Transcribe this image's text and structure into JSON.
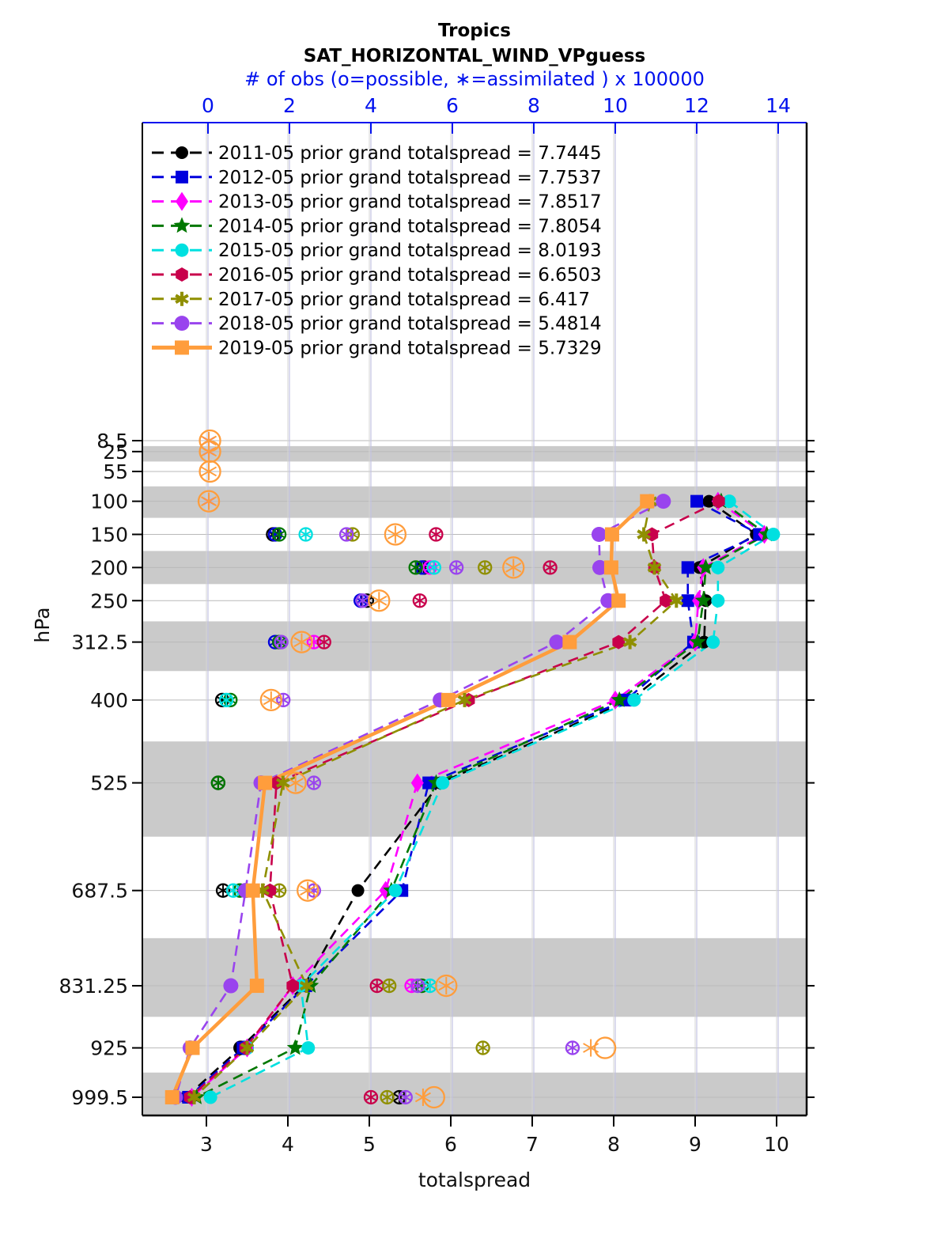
{
  "title": "Tropics",
  "subtitle": "SAT_HORIZONTAL_WIND_VPguess",
  "top_axis": {
    "label": "# of obs (o=possible, ∗=assimilated ) x 100000",
    "ticks": [
      0,
      2,
      4,
      6,
      8,
      10,
      12,
      14
    ],
    "range": [
      -1.6,
      14.7
    ],
    "color": "#0011ee"
  },
  "x_axis": {
    "label": "totalspread",
    "ticks": [
      3,
      4,
      5,
      6,
      7,
      8,
      9,
      10
    ],
    "range": [
      2.21,
      10.37
    ]
  },
  "y_axis": {
    "label": "hPa",
    "tick_labels": [
      "8.5",
      "25",
      "55",
      "100",
      "150",
      "200",
      "250",
      "312.5",
      "400",
      "525",
      "687.5",
      "831.25",
      "925",
      "999.5"
    ]
  },
  "chart_data": {
    "type": "line",
    "orientation": "profile-vertical",
    "levels_hpa": [
      8.5,
      25,
      55,
      100,
      150,
      200,
      250,
      312.5,
      400,
      525,
      687.5,
      831.25,
      925,
      999.5
    ],
    "spread_levels_hpa": [
      100,
      150,
      200,
      250,
      312.5,
      400,
      525,
      687.5,
      831.25,
      925,
      999.5
    ],
    "banded_levels_hpa": [
      25,
      100,
      200,
      312.5,
      525,
      831.25,
      999.5
    ],
    "band_color": "#cacaca",
    "grid": true,
    "legend_position": "top-left-inside",
    "series": [
      {
        "name": "2011-05",
        "legend_label": "2011-05 prior grand totalspread = 7.7445",
        "grand_totalspread": 7.7445,
        "color": "#000000",
        "marker": "circle",
        "msize": 8,
        "line": "dashed",
        "spread": [
          9.17,
          9.75,
          9.05,
          9.13,
          9.11,
          8.2,
          5.87,
          4.86,
          4.2,
          3.42,
          2.75
        ],
        "obs": [
          {
            "level": 150,
            "possible": 1.6,
            "assimilated": 1.6
          },
          {
            "level": 200,
            "possible": 5.3,
            "assimilated": 5.3
          },
          {
            "level": 250,
            "possible": 3.9,
            "assimilated": 3.9
          },
          {
            "level": 400,
            "possible": 0.35,
            "assimilated": 0.35
          },
          {
            "level": 525,
            "possible": 0.25,
            "assimilated": 0.25
          },
          {
            "level": 687.5,
            "possible": 0.37,
            "assimilated": 0.37
          },
          {
            "level": 925,
            "possible": 0.8,
            "assimilated": 0.8
          },
          {
            "level": 999.5,
            "possible": 4.7,
            "assimilated": 4.7
          }
        ]
      },
      {
        "name": "2012-05",
        "legend_label": "2012-05 prior grand totalspread = 7.7537",
        "grand_totalspread": 7.7537,
        "color": "#0000dd",
        "marker": "square",
        "msize": 8,
        "line": "dashed",
        "spread": [
          9.02,
          9.79,
          8.91,
          8.91,
          8.98,
          8.15,
          5.73,
          5.4,
          4.22,
          3.45,
          2.78
        ],
        "obs": [
          {
            "level": 150,
            "possible": 1.65,
            "assimilated": 1.65
          },
          {
            "level": 200,
            "possible": 5.25,
            "assimilated": 5.25
          },
          {
            "level": 250,
            "possible": 3.75,
            "assimilated": 3.75
          },
          {
            "level": 312.5,
            "possible": 1.65,
            "assimilated": 1.65
          },
          {
            "level": 925,
            "possible": 0.9,
            "assimilated": 0.9
          }
        ]
      },
      {
        "name": "2013-05",
        "legend_label": "2013-05 prior grand totalspread = 7.8517",
        "grand_totalspread": 7.8517,
        "color": "#ff00ff",
        "marker": "diamond",
        "msize": 10,
        "line": "dashed",
        "spread": [
          9.28,
          9.85,
          9.1,
          9.04,
          9.0,
          8.02,
          5.59,
          5.2,
          4.06,
          3.5,
          2.82
        ],
        "obs": [
          {
            "level": 8.5,
            "possible": null,
            "assimilated": 0.02
          },
          {
            "level": 25,
            "possible": null,
            "assimilated": 0.02
          },
          {
            "level": 100,
            "possible": null,
            "assimilated": 0.02
          },
          {
            "level": 200,
            "possible": 5.45,
            "assimilated": 5.45
          },
          {
            "level": 312.5,
            "possible": 2.6,
            "assimilated": 2.6
          },
          {
            "level": 687.5,
            "possible": 0.9,
            "assimilated": 0.9
          },
          {
            "level": 831.25,
            "possible": 5.0,
            "assimilated": 5.0
          }
        ]
      },
      {
        "name": "2014-05",
        "legend_label": "2014-05 prior grand totalspread = 7.8054",
        "grand_totalspread": 7.8054,
        "color": "#007700",
        "marker": "star",
        "msize": 11,
        "line": "dashed",
        "spread": [
          9.32,
          9.88,
          9.13,
          9.1,
          9.03,
          8.07,
          5.82,
          5.27,
          4.28,
          4.09,
          2.88
        ],
        "obs": [
          {
            "level": 150,
            "possible": 1.75,
            "assimilated": 1.75
          },
          {
            "level": 200,
            "possible": 5.1,
            "assimilated": 5.1
          },
          {
            "level": 312.5,
            "possible": 1.75,
            "assimilated": 1.75
          },
          {
            "level": 400,
            "possible": 0.55,
            "assimilated": 0.55
          },
          {
            "level": 525,
            "possible": 0.25,
            "assimilated": 0.25
          },
          {
            "level": 687.5,
            "possible": 0.78,
            "assimilated": 0.78
          },
          {
            "level": 831.25,
            "possible": 5.25,
            "assimilated": 5.25
          }
        ]
      },
      {
        "name": "2015-05",
        "legend_label": "2015-05 prior grand totalspread = 8.0193",
        "grand_totalspread": 8.0193,
        "color": "#00e0e0",
        "marker": "circle",
        "msize": 8.5,
        "line": "dashed",
        "spread": [
          9.42,
          9.96,
          9.28,
          9.28,
          9.22,
          8.25,
          5.9,
          5.32,
          4.16,
          4.25,
          3.05
        ],
        "obs": [
          {
            "level": 150,
            "possible": 2.4,
            "assimilated": 2.4
          },
          {
            "level": 200,
            "possible": 5.55,
            "assimilated": 5.55
          },
          {
            "level": 400,
            "possible": 0.45,
            "assimilated": 0.45
          },
          {
            "level": 687.5,
            "possible": 0.62,
            "assimilated": 0.62
          },
          {
            "level": 831.25,
            "possible": 5.45,
            "assimilated": 5.45
          },
          {
            "level": 925,
            "possible": 0.95,
            "assimilated": 0.95
          }
        ]
      },
      {
        "name": "2016-05",
        "legend_label": "2016-05 prior grand totalspread = 6.6503",
        "grand_totalspread": 6.6503,
        "color": "#c8004b",
        "marker": "hexagon",
        "msize": 9,
        "line": "dashed",
        "spread": [
          9.29,
          8.47,
          8.5,
          8.64,
          8.06,
          6.22,
          3.86,
          3.78,
          4.06,
          3.48,
          2.8
        ],
        "obs": [
          {
            "level": 150,
            "possible": 5.6,
            "assimilated": 5.6
          },
          {
            "level": 200,
            "possible": 8.4,
            "assimilated": 8.4
          },
          {
            "level": 250,
            "possible": 5.2,
            "assimilated": 5.2
          },
          {
            "level": 312.5,
            "possible": 2.85,
            "assimilated": 2.85
          },
          {
            "level": 831.25,
            "possible": 4.15,
            "assimilated": 4.15
          },
          {
            "level": 999.5,
            "possible": 4.0,
            "assimilated": 4.0
          }
        ]
      },
      {
        "name": "2017-05",
        "legend_label": "2017-05 prior grand totalspread = 6.417",
        "grand_totalspread": 6.417,
        "color": "#8f8f00",
        "marker": "asterisk",
        "msize": 9,
        "line": "dashed",
        "spread": [
          8.45,
          8.37,
          8.5,
          8.77,
          8.2,
          6.17,
          3.94,
          3.69,
          4.23,
          3.5,
          2.85
        ],
        "obs": [
          {
            "level": 150,
            "possible": 3.55,
            "assimilated": 3.55
          },
          {
            "level": 200,
            "possible": 6.8,
            "assimilated": 6.8
          },
          {
            "level": 687.5,
            "possible": 1.75,
            "assimilated": 1.75
          },
          {
            "level": 831.25,
            "possible": 4.45,
            "assimilated": 4.45
          },
          {
            "level": 925,
            "possible": 6.75,
            "assimilated": 6.75
          },
          {
            "level": 999.5,
            "possible": 4.4,
            "assimilated": 4.4
          }
        ]
      },
      {
        "name": "2018-05",
        "legend_label": "2018-05 prior grand totalspread = 5.4814",
        "grand_totalspread": 5.4814,
        "color": "#9944ee",
        "marker": "circle",
        "msize": 9.5,
        "line": "dashed",
        "spread": [
          8.61,
          7.82,
          7.83,
          7.93,
          7.3,
          5.87,
          3.67,
          3.48,
          3.3,
          2.8,
          2.62
        ],
        "obs": [
          {
            "level": 8.5,
            "possible": null,
            "assimilated": 0.02
          },
          {
            "level": 25,
            "possible": null,
            "assimilated": 0.02
          },
          {
            "level": 100,
            "possible": null,
            "assimilated": 0.02
          },
          {
            "level": 150,
            "possible": 3.4,
            "assimilated": 3.4
          },
          {
            "level": 200,
            "possible": 6.1,
            "assimilated": 6.1
          },
          {
            "level": 250,
            "possible": 3.8,
            "assimilated": 3.8
          },
          {
            "level": 312.5,
            "possible": 1.8,
            "assimilated": 1.8
          },
          {
            "level": 400,
            "possible": 1.85,
            "assimilated": 1.85
          },
          {
            "level": 525,
            "possible": 2.6,
            "assimilated": 2.6
          },
          {
            "level": 687.5,
            "possible": 2.6,
            "assimilated": 2.6
          },
          {
            "level": 831.25,
            "possible": 5.15,
            "assimilated": 5.15
          },
          {
            "level": 925,
            "possible": 8.95,
            "assimilated": 8.95
          },
          {
            "level": 999.5,
            "possible": 4.85,
            "assimilated": 4.85
          }
        ]
      },
      {
        "name": "2019-05",
        "legend_label": "2019-05 prior grand totalspread = 5.7329",
        "grand_totalspread": 5.7329,
        "color": "#ff9d3c",
        "marker": "square",
        "msize": 9,
        "line": "solid",
        "spread": [
          8.41,
          7.98,
          7.97,
          8.06,
          7.46,
          5.97,
          3.72,
          3.57,
          3.62,
          2.83,
          2.58
        ],
        "obs": [
          {
            "level": 8.5,
            "possible": 0.05,
            "assimilated": 0.02
          },
          {
            "level": 25,
            "possible": 0.05,
            "assimilated": 0.02
          },
          {
            "level": 55,
            "possible": 0.05,
            "assimilated": 0.02
          },
          {
            "level": 100,
            "possible": 0.02,
            "assimilated": 0.02
          },
          {
            "level": 150,
            "possible": 4.6,
            "assimilated": 4.6
          },
          {
            "level": 200,
            "possible": 7.5,
            "assimilated": 7.5
          },
          {
            "level": 250,
            "possible": 4.2,
            "assimilated": 4.2
          },
          {
            "level": 312.5,
            "possible": 2.3,
            "assimilated": 2.3
          },
          {
            "level": 400,
            "possible": 1.55,
            "assimilated": 1.55
          },
          {
            "level": 525,
            "possible": 2.15,
            "assimilated": 2.15
          },
          {
            "level": 687.5,
            "possible": 2.45,
            "assimilated": 2.45
          },
          {
            "level": 831.25,
            "possible": 5.85,
            "assimilated": 5.85
          },
          {
            "level": 925,
            "possible": 9.75,
            "assimilated": 9.4
          },
          {
            "level": 999.5,
            "possible": 5.55,
            "assimilated": 5.28
          }
        ]
      }
    ]
  }
}
